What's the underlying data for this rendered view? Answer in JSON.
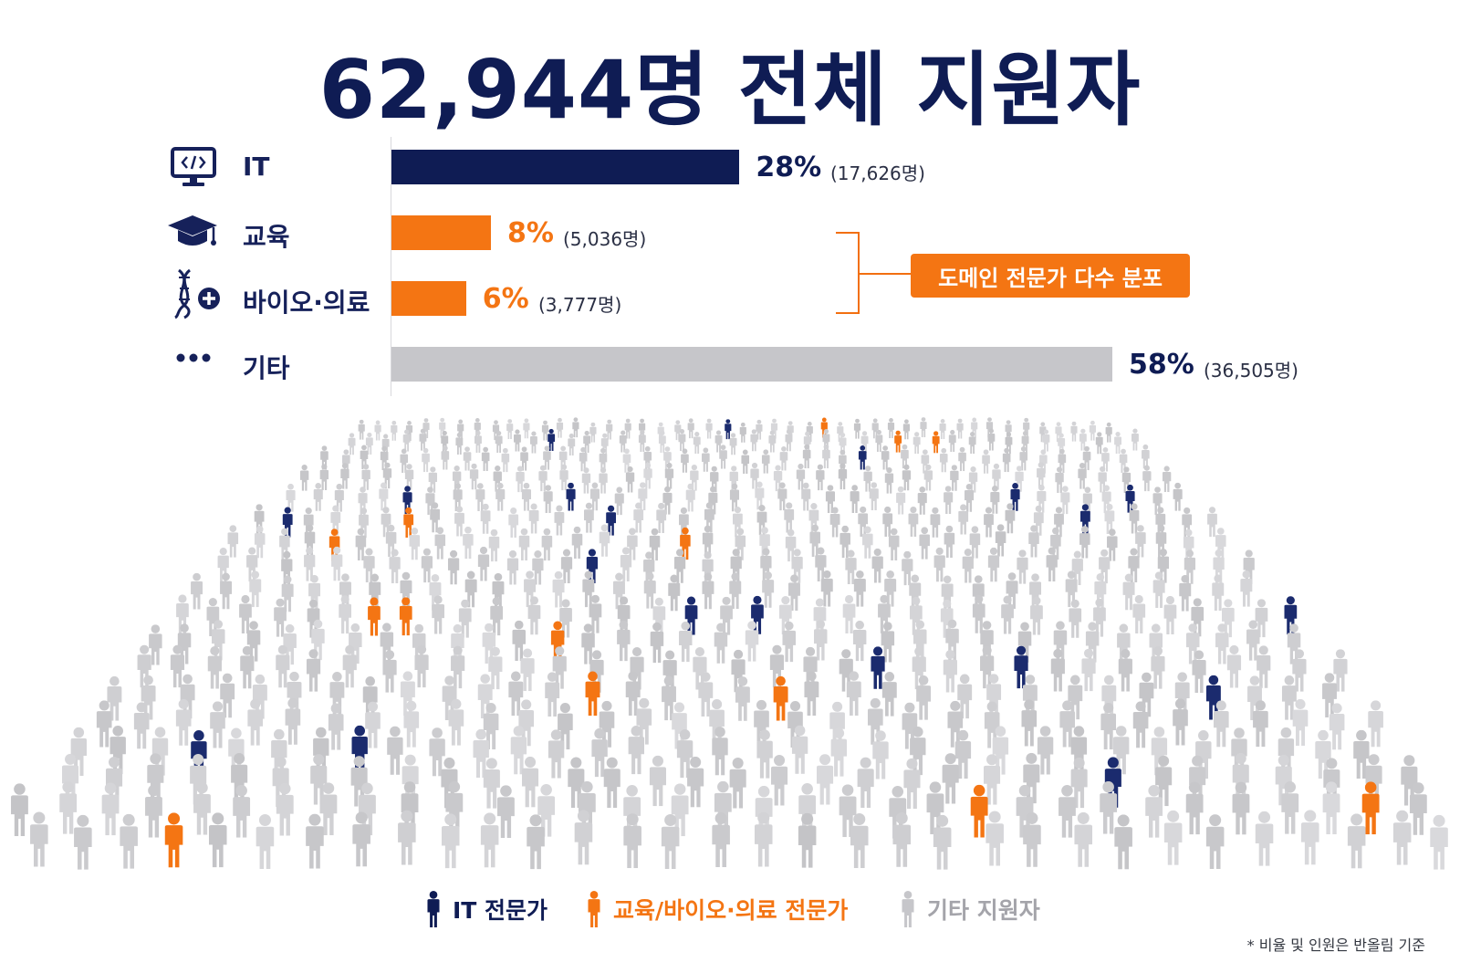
{
  "title": "62,944명 전체 지원자",
  "chart_data": {
    "type": "bar",
    "categories": [
      "IT",
      "교육",
      "바이오·의료",
      "기타"
    ],
    "values": [
      28,
      8,
      6,
      58
    ],
    "value_labels": [
      "28%",
      "8%",
      "6%",
      "58%"
    ],
    "counts": [
      "(17,626명)",
      "(5,036명)",
      "(3,777명)",
      "(36,505명)"
    ],
    "colors": [
      "#0f1c54",
      "#f47513",
      "#f47513",
      "#c6c6ca"
    ],
    "xlim": [
      0,
      58
    ]
  },
  "icons": [
    "monitor-code-icon",
    "graduation-cap-icon",
    "dna-plus-icon",
    "dots-icon"
  ],
  "callout": "도메인 전문가 다수 분포",
  "legend": [
    {
      "label": "IT 전문가",
      "color": "#0f1c54"
    },
    {
      "label": "교육/바이오·의료 전문가",
      "color": "#f47513"
    },
    {
      "label": "기타 지원자",
      "color": "#a4a4aa"
    }
  ],
  "footnote": "* 비율 및 인원은 반올림 기준"
}
